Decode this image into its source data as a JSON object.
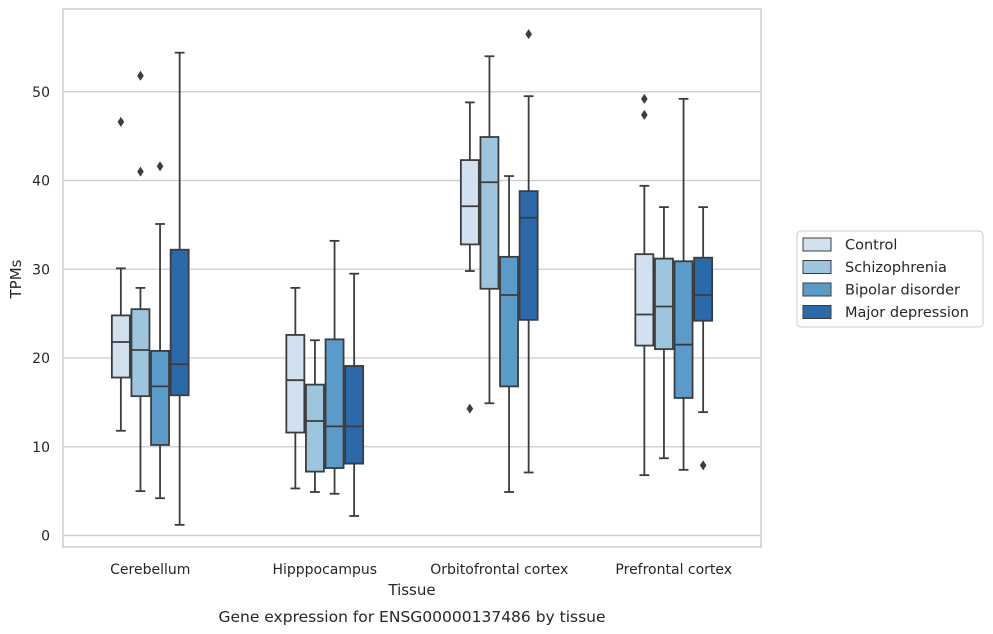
{
  "chart_data": {
    "type": "box",
    "title": "",
    "caption": "Gene expression for ENSG00000137486 by tissue",
    "xlabel": "Tissue",
    "ylabel": "TPMs",
    "categories": [
      "Cerebellum",
      "Hipppocampus",
      "Orbitofrontal cortex",
      "Prefrontal cortex"
    ],
    "ylim": [
      -1.3,
      59
    ],
    "yticks": [
      0,
      10,
      20,
      30,
      40,
      50
    ],
    "grid": "horizontal",
    "legend_position": "right",
    "series": [
      {
        "name": "Control",
        "color": "#d1e1f0",
        "boxes": [
          {
            "whisker_low": 11.8,
            "q1": 17.8,
            "median": 21.8,
            "q3": 24.8,
            "whisker_high": 30.1,
            "outliers": [
              46.6
            ]
          },
          {
            "whisker_low": 5.3,
            "q1": 11.6,
            "median": 17.5,
            "q3": 22.6,
            "whisker_high": 27.9,
            "outliers": []
          },
          {
            "whisker_low": 29.8,
            "q1": 32.8,
            "median": 37.1,
            "q3": 42.3,
            "whisker_high": 48.8,
            "outliers": [
              14.3
            ]
          },
          {
            "whisker_low": 6.8,
            "q1": 21.4,
            "median": 24.9,
            "q3": 31.7,
            "whisker_high": 39.4,
            "outliers": [
              47.4,
              49.2
            ]
          }
        ]
      },
      {
        "name": "Schizophrenia",
        "color": "#9dc5df",
        "boxes": [
          {
            "whisker_low": 5.0,
            "q1": 15.7,
            "median": 20.9,
            "q3": 25.5,
            "whisker_high": 27.9,
            "outliers": [
              41.0,
              51.8
            ]
          },
          {
            "whisker_low": 4.9,
            "q1": 7.2,
            "median": 12.9,
            "q3": 17.0,
            "whisker_high": 22.0,
            "outliers": []
          },
          {
            "whisker_low": 14.9,
            "q1": 27.8,
            "median": 39.8,
            "q3": 44.9,
            "whisker_high": 54.0,
            "outliers": []
          },
          {
            "whisker_low": 8.7,
            "q1": 21.0,
            "median": 25.8,
            "q3": 31.2,
            "whisker_high": 37.0,
            "outliers": []
          }
        ]
      },
      {
        "name": "Bipolar disorder",
        "color": "#5b9bc9",
        "boxes": [
          {
            "whisker_low": 4.2,
            "q1": 10.2,
            "median": 16.8,
            "q3": 20.8,
            "whisker_high": 35.1,
            "outliers": [
              41.6
            ]
          },
          {
            "whisker_low": 4.7,
            "q1": 7.6,
            "median": 12.3,
            "q3": 22.1,
            "whisker_high": 33.2,
            "outliers": []
          },
          {
            "whisker_low": 4.9,
            "q1": 16.8,
            "median": 27.1,
            "q3": 31.4,
            "whisker_high": 40.5,
            "outliers": []
          },
          {
            "whisker_low": 7.4,
            "q1": 15.5,
            "median": 21.5,
            "q3": 30.9,
            "whisker_high": 49.2,
            "outliers": []
          }
        ]
      },
      {
        "name": "Major depression",
        "color": "#2a6aaa",
        "boxes": [
          {
            "whisker_low": 1.2,
            "q1": 15.8,
            "median": 19.3,
            "q3": 32.2,
            "whisker_high": 54.4,
            "outliers": []
          },
          {
            "whisker_low": 2.2,
            "q1": 8.1,
            "median": 12.3,
            "q3": 19.1,
            "whisker_high": 29.5,
            "outliers": []
          },
          {
            "whisker_low": 7.1,
            "q1": 24.3,
            "median": 35.8,
            "q3": 38.8,
            "whisker_high": 49.5,
            "outliers": [
              56.5
            ]
          },
          {
            "whisker_low": 13.9,
            "q1": 24.2,
            "median": 27.1,
            "q3": 31.3,
            "whisker_high": 37.0,
            "outliers": [
              7.9
            ]
          }
        ]
      }
    ]
  }
}
